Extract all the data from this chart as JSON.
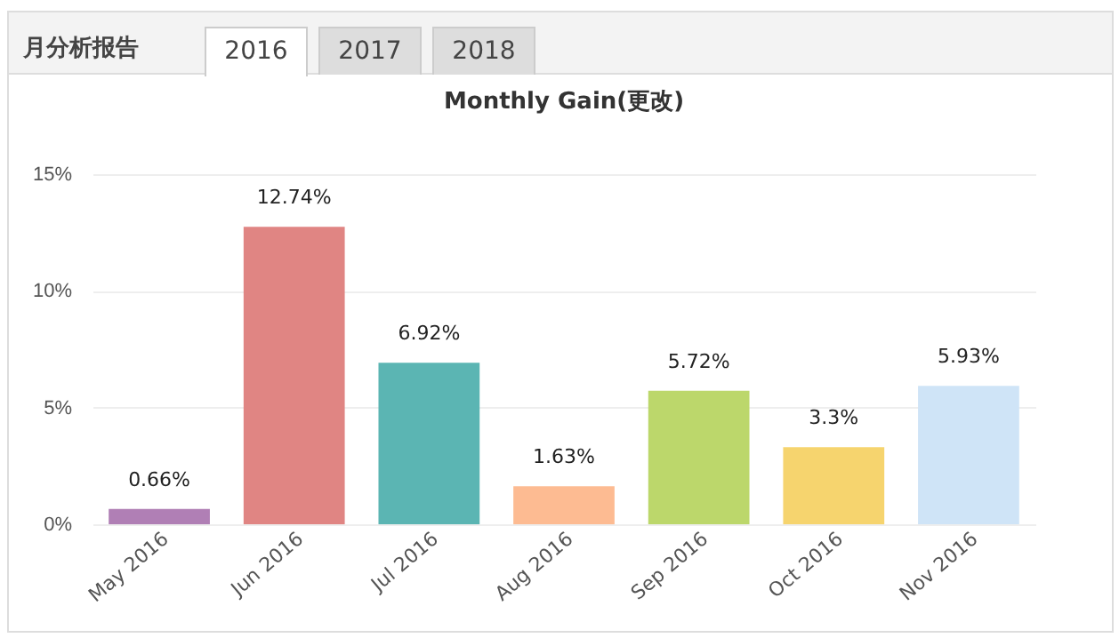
{
  "chart_data": {
    "type": "bar",
    "title": "Monthly Gain(更改)",
    "annotations": [
      "月分析报告",
      "2016",
      "2017",
      "2018"
    ],
    "categories": [
      "May 2016",
      "Jun 2016",
      "Jul 2016",
      "Aug 2016",
      "Sep 2016",
      "Oct 2016",
      "Nov 2016"
    ],
    "values": [
      0.66,
      12.74,
      6.92,
      1.63,
      5.72,
      3.3,
      5.93
    ],
    "value_labels": [
      "0.66%",
      "12.74%",
      "6.92%",
      "1.63%",
      "5.72%",
      "3.3%",
      "5.93%"
    ],
    "colors": [
      "#b07fb5",
      "#e08583",
      "#5bb5b3",
      "#fdbb92",
      "#bcd76b",
      "#f6d46e",
      "#cfe4f7"
    ],
    "ylim": [
      0,
      15
    ],
    "yticks": [
      {
        "value": 0,
        "label": "0%"
      },
      {
        "value": 5,
        "label": "5%"
      },
      {
        "value": 10,
        "label": "10%"
      },
      {
        "value": 15,
        "label": "15%"
      }
    ],
    "grid": "y"
  }
}
